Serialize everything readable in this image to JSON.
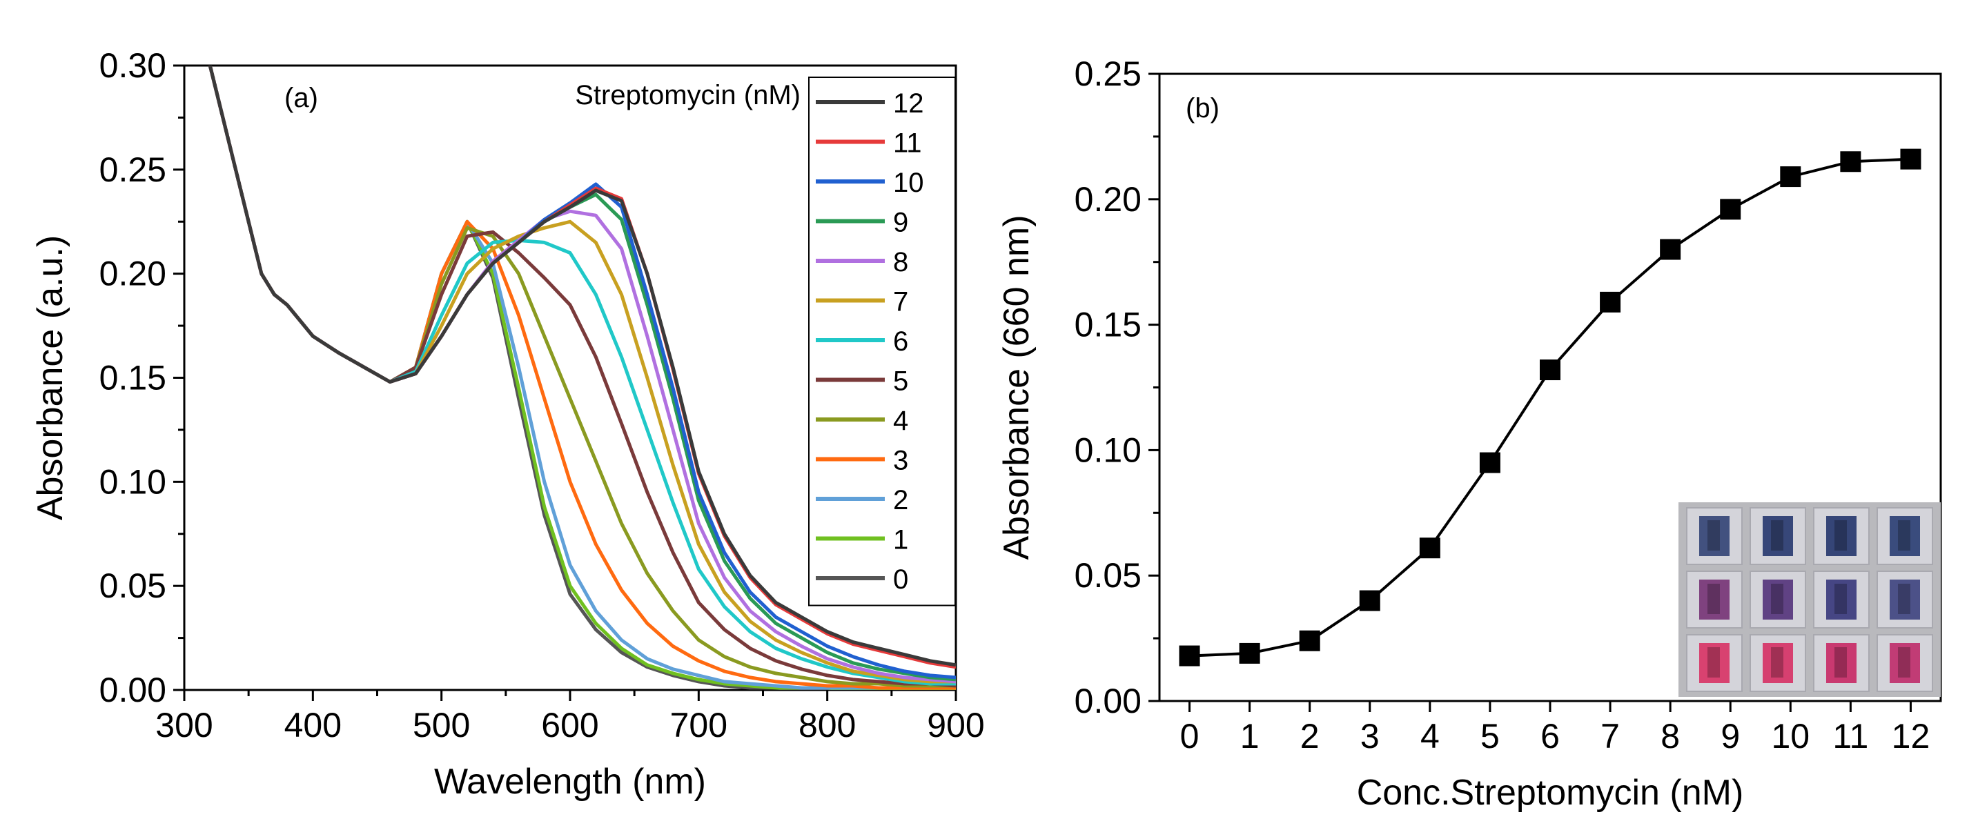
{
  "chart_data": [
    {
      "panel": "(a)",
      "type": "line",
      "xlabel": "Wavelength (nm)",
      "ylabel": "Absorbance (a.u.)",
      "xlim": [
        300,
        900
      ],
      "ylim": [
        0.0,
        0.3
      ],
      "xticks": [
        300,
        400,
        500,
        600,
        700,
        800,
        900
      ],
      "yticks": [
        0.0,
        0.05,
        0.1,
        0.15,
        0.2,
        0.25,
        0.3
      ],
      "xtick_labels": [
        "300",
        "400",
        "500",
        "600",
        "700",
        "800",
        "900"
      ],
      "ytick_labels": [
        "0.00",
        "0.05",
        "0.10",
        "0.15",
        "0.20",
        "0.25",
        "0.30"
      ],
      "legend_title": "Streptomycin (nM)",
      "legend_position": "top-right",
      "x": [
        320,
        340,
        360,
        370,
        380,
        400,
        420,
        440,
        460,
        480,
        500,
        520,
        540,
        560,
        580,
        600,
        620,
        640,
        660,
        680,
        700,
        720,
        740,
        760,
        780,
        800,
        820,
        840,
        860,
        880,
        900
      ],
      "series": [
        {
          "name": "12",
          "color": "#3a3a3a",
          "values": [
            0.3,
            0.25,
            0.2,
            0.19,
            0.185,
            0.17,
            0.162,
            0.155,
            0.148,
            0.152,
            0.17,
            0.19,
            0.205,
            0.215,
            0.225,
            0.232,
            0.24,
            0.235,
            0.2,
            0.155,
            0.105,
            0.075,
            0.055,
            0.042,
            0.035,
            0.028,
            0.023,
            0.02,
            0.017,
            0.014,
            0.012
          ]
        },
        {
          "name": "11",
          "color": "#e63a3a",
          "values": [
            0.3,
            0.25,
            0.2,
            0.19,
            0.185,
            0.17,
            0.162,
            0.155,
            0.148,
            0.152,
            0.17,
            0.19,
            0.205,
            0.215,
            0.225,
            0.233,
            0.241,
            0.236,
            0.2,
            0.154,
            0.104,
            0.074,
            0.054,
            0.041,
            0.034,
            0.027,
            0.022,
            0.019,
            0.016,
            0.013,
            0.011
          ]
        },
        {
          "name": "10",
          "color": "#2060d0",
          "values": [
            0.3,
            0.25,
            0.2,
            0.19,
            0.185,
            0.17,
            0.162,
            0.155,
            0.148,
            0.152,
            0.17,
            0.19,
            0.205,
            0.215,
            0.226,
            0.234,
            0.243,
            0.232,
            0.19,
            0.145,
            0.095,
            0.066,
            0.047,
            0.035,
            0.028,
            0.021,
            0.016,
            0.012,
            0.009,
            0.007,
            0.006
          ]
        },
        {
          "name": "9",
          "color": "#2a9a55",
          "values": [
            0.3,
            0.25,
            0.2,
            0.19,
            0.185,
            0.17,
            0.162,
            0.155,
            0.148,
            0.152,
            0.17,
            0.19,
            0.205,
            0.215,
            0.225,
            0.232,
            0.238,
            0.226,
            0.185,
            0.14,
            0.091,
            0.062,
            0.044,
            0.032,
            0.025,
            0.018,
            0.013,
            0.01,
            0.008,
            0.006,
            0.005
          ]
        },
        {
          "name": "8",
          "color": "#b070e0",
          "values": [
            0.3,
            0.25,
            0.2,
            0.19,
            0.185,
            0.17,
            0.162,
            0.155,
            0.148,
            0.152,
            0.17,
            0.19,
            0.206,
            0.216,
            0.226,
            0.23,
            0.228,
            0.212,
            0.17,
            0.125,
            0.08,
            0.054,
            0.038,
            0.028,
            0.021,
            0.015,
            0.011,
            0.008,
            0.006,
            0.005,
            0.004
          ]
        },
        {
          "name": "7",
          "color": "#c8a020",
          "values": [
            0.3,
            0.25,
            0.2,
            0.19,
            0.185,
            0.17,
            0.162,
            0.155,
            0.148,
            0.152,
            0.175,
            0.2,
            0.212,
            0.218,
            0.222,
            0.225,
            0.215,
            0.19,
            0.15,
            0.108,
            0.07,
            0.047,
            0.033,
            0.024,
            0.018,
            0.013,
            0.009,
            0.007,
            0.005,
            0.004,
            0.004
          ]
        },
        {
          "name": "6",
          "color": "#20c8c8",
          "values": [
            0.3,
            0.25,
            0.2,
            0.19,
            0.185,
            0.17,
            0.162,
            0.155,
            0.148,
            0.153,
            0.18,
            0.205,
            0.215,
            0.216,
            0.215,
            0.21,
            0.19,
            0.16,
            0.125,
            0.09,
            0.058,
            0.04,
            0.028,
            0.02,
            0.015,
            0.011,
            0.008,
            0.006,
            0.004,
            0.003,
            0.003
          ]
        },
        {
          "name": "5",
          "color": "#7a3a3a",
          "values": [
            0.3,
            0.25,
            0.2,
            0.19,
            0.185,
            0.17,
            0.162,
            0.155,
            0.148,
            0.155,
            0.19,
            0.218,
            0.22,
            0.21,
            0.198,
            0.185,
            0.16,
            0.128,
            0.095,
            0.066,
            0.042,
            0.029,
            0.02,
            0.014,
            0.01,
            0.007,
            0.005,
            0.004,
            0.003,
            0.003,
            0.002
          ]
        },
        {
          "name": "4",
          "color": "#8a9a20",
          "values": [
            0.3,
            0.25,
            0.2,
            0.19,
            0.185,
            0.17,
            0.162,
            0.155,
            0.148,
            0.155,
            0.195,
            0.222,
            0.218,
            0.2,
            0.17,
            0.14,
            0.11,
            0.08,
            0.056,
            0.038,
            0.024,
            0.016,
            0.011,
            0.008,
            0.006,
            0.004,
            0.003,
            0.003,
            0.002,
            0.002,
            0.002
          ]
        },
        {
          "name": "3",
          "color": "#ff6a10",
          "values": [
            0.3,
            0.25,
            0.2,
            0.19,
            0.185,
            0.17,
            0.162,
            0.155,
            0.148,
            0.155,
            0.2,
            0.225,
            0.212,
            0.18,
            0.14,
            0.1,
            0.07,
            0.048,
            0.032,
            0.021,
            0.014,
            0.009,
            0.006,
            0.004,
            0.003,
            0.002,
            0.002,
            0.001,
            0.001,
            0.001,
            0.001
          ]
        },
        {
          "name": "2",
          "color": "#60a0d8",
          "values": [
            0.3,
            0.25,
            0.2,
            0.19,
            0.185,
            0.17,
            0.162,
            0.155,
            0.148,
            0.155,
            0.2,
            0.225,
            0.205,
            0.155,
            0.1,
            0.06,
            0.038,
            0.024,
            0.015,
            0.01,
            0.007,
            0.004,
            0.003,
            0.002,
            0.001,
            0.001,
            0.001,
            0.001,
            0.001,
            0.001,
            0.001
          ]
        },
        {
          "name": "1",
          "color": "#70c020",
          "values": [
            0.3,
            0.25,
            0.2,
            0.19,
            0.185,
            0.17,
            0.162,
            0.155,
            0.148,
            0.155,
            0.2,
            0.225,
            0.2,
            0.145,
            0.088,
            0.05,
            0.032,
            0.02,
            0.012,
            0.008,
            0.005,
            0.003,
            0.002,
            0.001,
            0.001,
            0.001,
            0.0,
            0.0,
            0.0,
            0.0,
            0.0
          ]
        },
        {
          "name": "0",
          "color": "#555555",
          "values": [
            0.3,
            0.25,
            0.2,
            0.19,
            0.185,
            0.17,
            0.162,
            0.155,
            0.148,
            0.155,
            0.2,
            0.225,
            0.198,
            0.14,
            0.084,
            0.046,
            0.029,
            0.018,
            0.011,
            0.007,
            0.004,
            0.002,
            0.001,
            0.001,
            0.0,
            0.0,
            0.0,
            0.0,
            0.0,
            0.0,
            0.0
          ]
        }
      ]
    },
    {
      "panel": "(b)",
      "type": "line",
      "marker": "square",
      "xlabel": "Conc.Streptomycin (nM)",
      "ylabel": "Absorbance (660 nm)",
      "xlim": [
        -0.5,
        12.5
      ],
      "ylim": [
        0.0,
        0.25
      ],
      "xticks": [
        0,
        1,
        2,
        3,
        4,
        5,
        6,
        7,
        8,
        9,
        10,
        11,
        12
      ],
      "yticks": [
        0.0,
        0.05,
        0.1,
        0.15,
        0.2,
        0.25
      ],
      "xtick_labels": [
        "0",
        "1",
        "2",
        "3",
        "4",
        "5",
        "6",
        "7",
        "8",
        "9",
        "10",
        "11",
        "12"
      ],
      "ytick_labels": [
        "0.00",
        "0.05",
        "0.10",
        "0.15",
        "0.20",
        "0.25"
      ],
      "x": [
        0,
        1,
        2,
        3,
        4,
        5,
        6,
        7,
        8,
        9,
        10,
        11,
        12
      ],
      "values": [
        0.018,
        0.019,
        0.024,
        0.04,
        0.061,
        0.095,
        0.132,
        0.159,
        0.18,
        0.196,
        0.209,
        0.215,
        0.216
      ],
      "inset": {
        "description": "photo of 12 cuvettes",
        "rows": [
          [
            "#3a4a7a",
            "#2e3f74",
            "#2c3d72",
            "#324478"
          ],
          [
            "#7a3a7a",
            "#5a3a80",
            "#3e3e80",
            "#444a84"
          ],
          [
            "#d83a6a",
            "#d6386a",
            "#c8306a",
            "#c03470"
          ]
        ]
      }
    }
  ]
}
